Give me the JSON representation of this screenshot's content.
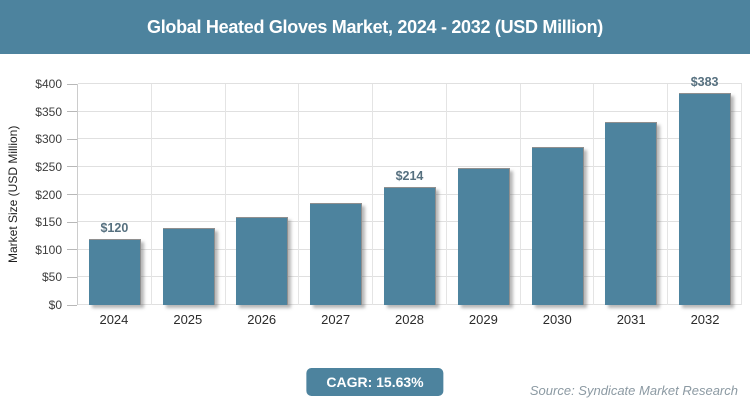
{
  "header": {
    "title": "Global Heated Gloves Market, 2024 - 2032 (USD Million)"
  },
  "chart_data": {
    "type": "bar",
    "title": "Global Heated Gloves Market, 2024 - 2032 (USD Million)",
    "categories": [
      "2024",
      "2025",
      "2026",
      "2027",
      "2028",
      "2029",
      "2030",
      "2031",
      "2032"
    ],
    "values": [
      120,
      139,
      160,
      185,
      214,
      248,
      286,
      331,
      383
    ],
    "data_labels": [
      "$120",
      "",
      "",
      "",
      "$214",
      "",
      "",
      "",
      "$383"
    ],
    "xlabel": "",
    "ylabel": "Market Size (USD Million)",
    "ylim": [
      0,
      400
    ],
    "ytick_step": 50,
    "ytick_labels": [
      "$0",
      "$50",
      "$100",
      "$150",
      "$200",
      "$250",
      "$300",
      "$350",
      "$400"
    ],
    "grid": true,
    "legend_position": "none",
    "bar_color": "#4d839e"
  },
  "footer": {
    "cagr_label": "CAGR: 15.63%",
    "source": "Source: Syndicate Market Research"
  },
  "colors": {
    "accent_teal": "#4d839e",
    "title_text": "#ffffff",
    "data_label_text": "#56707f",
    "gridline": "#e0e0e0",
    "axis_line": "#cccccc",
    "tick_label_text": "#3d3d3d",
    "source_text": "#8c9aa3"
  }
}
